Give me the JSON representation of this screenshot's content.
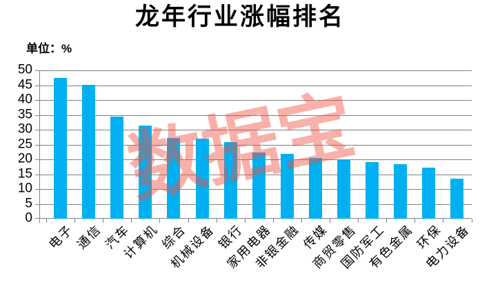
{
  "page": {
    "title": "龙年行业涨幅排名",
    "unit_label": "单位：%",
    "watermark": "数据宝"
  },
  "colors": {
    "bar": "#00B0F0",
    "grid": "#7F7F7F",
    "axis": "#7F7F7F",
    "text": "#000000",
    "watermark": "#F05242",
    "watermark_opacity": 0.45
  },
  "chart_data": {
    "type": "bar",
    "title": "龙年行业涨幅排名",
    "unit": "%",
    "categories": [
      "电子",
      "通信",
      "汽车",
      "计算机",
      "综合",
      "机械设备",
      "银行",
      "家用电器",
      "非银金融",
      "传媒",
      "商贸零售",
      "国防军工",
      "有色金属",
      "环保",
      "电力设备"
    ],
    "values": [
      47.5,
      45.1,
      34.5,
      31.5,
      27.3,
      27.0,
      25.8,
      22.3,
      21.8,
      20.4,
      19.7,
      19.1,
      18.3,
      17.1,
      13.6
    ],
    "xlabel": "",
    "ylabel": "单位：%",
    "ylim": [
      0,
      50
    ],
    "ytick_step": 5,
    "grid": "horizontal",
    "legend": "none",
    "bar_color": "#00B0F0",
    "watermark_text": "数据宝",
    "x_label_rotation": 45
  }
}
